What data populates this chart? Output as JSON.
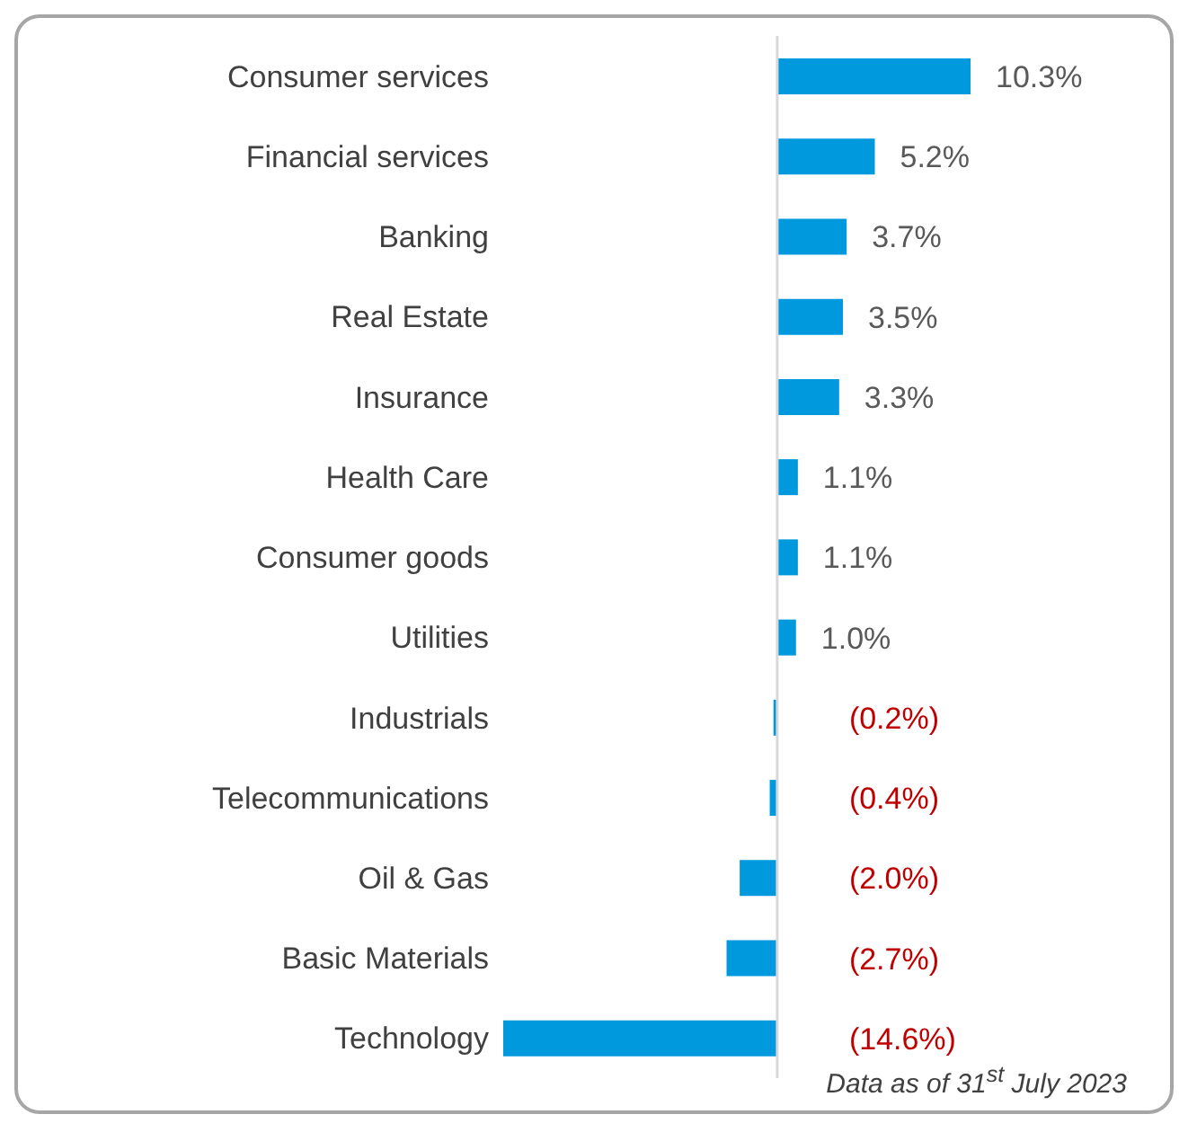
{
  "chart_data": {
    "type": "bar",
    "orientation": "horizontal",
    "categories": [
      "Consumer services",
      "Financial services",
      "Banking",
      "Real Estate",
      "Insurance",
      "Health Care",
      "Consumer goods",
      "Utilities",
      "Industrials",
      "Telecommunications",
      "Oil & Gas",
      "Basic Materials",
      "Technology"
    ],
    "values": [
      10.3,
      5.2,
      3.7,
      3.5,
      3.3,
      1.1,
      1.1,
      1.0,
      -0.2,
      -0.4,
      -2.0,
      -2.7,
      -14.6
    ],
    "value_labels": [
      "10.3%",
      "5.2%",
      "3.7%",
      "3.5%",
      "3.3%",
      "1.1%",
      "1.1%",
      "1.0%",
      "(0.2%)",
      "(0.4%)",
      "(2.0%)",
      "(2.7%)",
      "(14.6%)"
    ],
    "color": "#0099dd",
    "annotations": [
      "Data as of 31$^{st}$ July 2023"
    ]
  }
}
